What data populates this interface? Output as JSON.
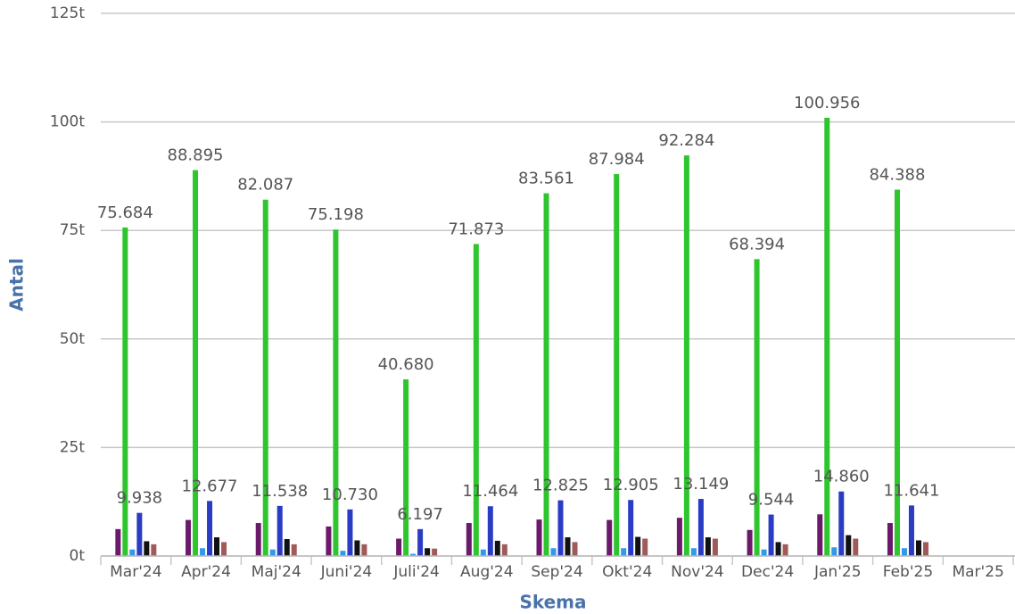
{
  "chart_data": {
    "type": "bar",
    "x_label": "Skema",
    "y_label": "Antal",
    "categories": [
      "Mar'24",
      "Apr'24",
      "Maj'24",
      "Juni'24",
      "Juli'24",
      "Aug'24",
      "Sep'24",
      "Okt'24",
      "Nov'24",
      "Dec'24",
      "Jan'25",
      "Feb'25",
      "Mar'25"
    ],
    "ylim": [
      0,
      125000
    ],
    "yticks": [
      {
        "value": 0,
        "label": "0t"
      },
      {
        "value": 25000,
        "label": "25t"
      },
      {
        "value": 50000,
        "label": "50t"
      },
      {
        "value": 75000,
        "label": "75t"
      },
      {
        "value": 100000,
        "label": "100t"
      },
      {
        "value": 125000,
        "label": "125t"
      }
    ],
    "grid": true,
    "series": [
      {
        "color": "#6b1a6b",
        "values": [
          6200,
          8300,
          7600,
          6800,
          4000,
          7600,
          8400,
          8300,
          8800,
          6000,
          9600,
          7600,
          null
        ]
      },
      {
        "color": "#2ec52e",
        "values": [
          75684,
          88895,
          82087,
          75198,
          40680,
          71873,
          83561,
          87984,
          92284,
          68394,
          100956,
          84388,
          null
        ],
        "value_labels": [
          "75.684",
          "88.895",
          "82.087",
          "75.198",
          "40.680",
          "71.873",
          "83.561",
          "87.984",
          "92.284",
          "68.394",
          "100.956",
          "84.388",
          null
        ]
      },
      {
        "color": "#3399e6",
        "values": [
          1500,
          1800,
          1500,
          1200,
          500,
          1500,
          1800,
          1800,
          1800,
          1500,
          2000,
          1800,
          null
        ]
      },
      {
        "color": "#2b3cc4",
        "values": [
          9938,
          12677,
          11538,
          10730,
          6197,
          11464,
          12825,
          12905,
          13149,
          9544,
          14860,
          11641,
          null
        ],
        "value_labels": [
          "9.938",
          "12.677",
          "11.538",
          "10.730",
          "6.197",
          "11.464",
          "12.825",
          "12.905",
          "13.149",
          "9.544",
          "14.860",
          "11.641",
          null
        ]
      },
      {
        "color": "#111111",
        "values": [
          3400,
          4300,
          3900,
          3600,
          1800,
          3500,
          4300,
          4400,
          4300,
          3200,
          4800,
          3600,
          null
        ]
      },
      {
        "color": "#a05a5a",
        "values": [
          2700,
          3200,
          2700,
          2700,
          1700,
          2700,
          3200,
          4000,
          4000,
          2700,
          4000,
          3200,
          null
        ]
      }
    ]
  }
}
